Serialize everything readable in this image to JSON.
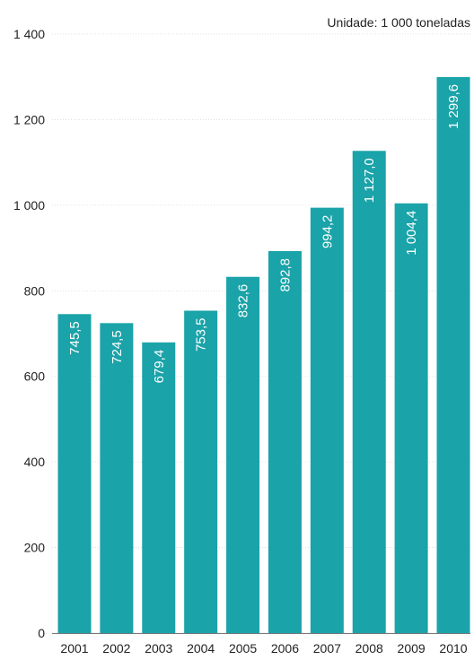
{
  "chart_data": {
    "type": "bar",
    "title": "",
    "unit_note": "Unidade: 1 000 toneladas",
    "xlabel": "",
    "ylabel": "",
    "categories": [
      "2001",
      "2002",
      "2003",
      "2004",
      "2005",
      "2006",
      "2007",
      "2008",
      "2009",
      "2010"
    ],
    "values": [
      745.5,
      724.5,
      679.4,
      753.5,
      832.6,
      892.8,
      994.2,
      1127.0,
      1004.4,
      1299.6
    ],
    "value_labels": [
      "745,5",
      "724,5",
      "679,4",
      "753,5",
      "832,6",
      "892,8",
      "994,2",
      "1 127,0",
      "1 004,4",
      "1 299,6"
    ],
    "ylim": [
      0,
      1400
    ],
    "yticks": [
      0,
      200,
      400,
      600,
      800,
      1000,
      1200,
      1400
    ],
    "ytick_labels": [
      "0",
      "200",
      "400",
      "600",
      "800",
      "1 000",
      "1 200",
      "1 400"
    ],
    "grid": true,
    "legend": "none",
    "bar_color": "#1aa3a8"
  }
}
